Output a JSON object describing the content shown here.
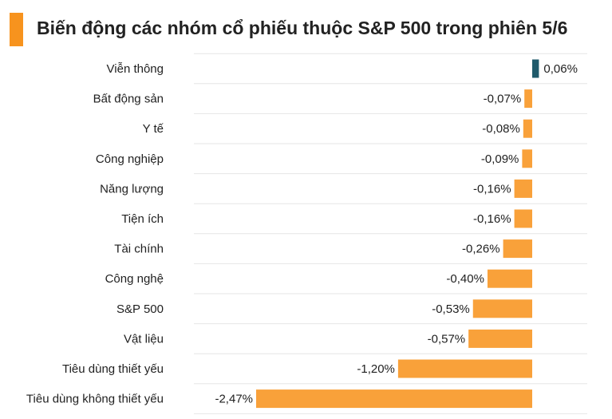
{
  "header": {
    "title": "Biến động các nhóm cổ phiếu thuộc S&P 500 trong phiên 5/6"
  },
  "colors": {
    "accent": "#f7931e",
    "negative": "#f9a13a",
    "positive": "#1f5a6b",
    "gridline": "#e6e6e6"
  },
  "chart_data": {
    "type": "bar",
    "orientation": "horizontal",
    "title": "Biến động các nhóm cổ phiếu thuộc S&P 500 trong phiên 5/6",
    "unit": "%",
    "categories": [
      "Viễn thông",
      "Bất động sản",
      "Y tế",
      "Công nghiệp",
      "Năng lượng",
      "Tiện ích",
      "Tài chính",
      "Công nghệ",
      "S&P 500",
      "Vật liệu",
      "Tiêu dùng thiết yếu",
      "Tiêu dùng không thiết yếu"
    ],
    "values": [
      0.06,
      -0.07,
      -0.08,
      -0.09,
      -0.16,
      -0.16,
      -0.26,
      -0.4,
      -0.53,
      -0.57,
      -1.2,
      -2.47
    ],
    "value_labels": [
      "0,06%",
      "-0,07%",
      "-0,08%",
      "-0,09%",
      "-0,16%",
      "-0,16%",
      "-0,26%",
      "-0,40%",
      "-0,53%",
      "-0,57%",
      "-1,20%",
      "-2,47%"
    ],
    "xlim": [
      -2.47,
      0.06
    ],
    "grid": true,
    "legend": "none"
  }
}
